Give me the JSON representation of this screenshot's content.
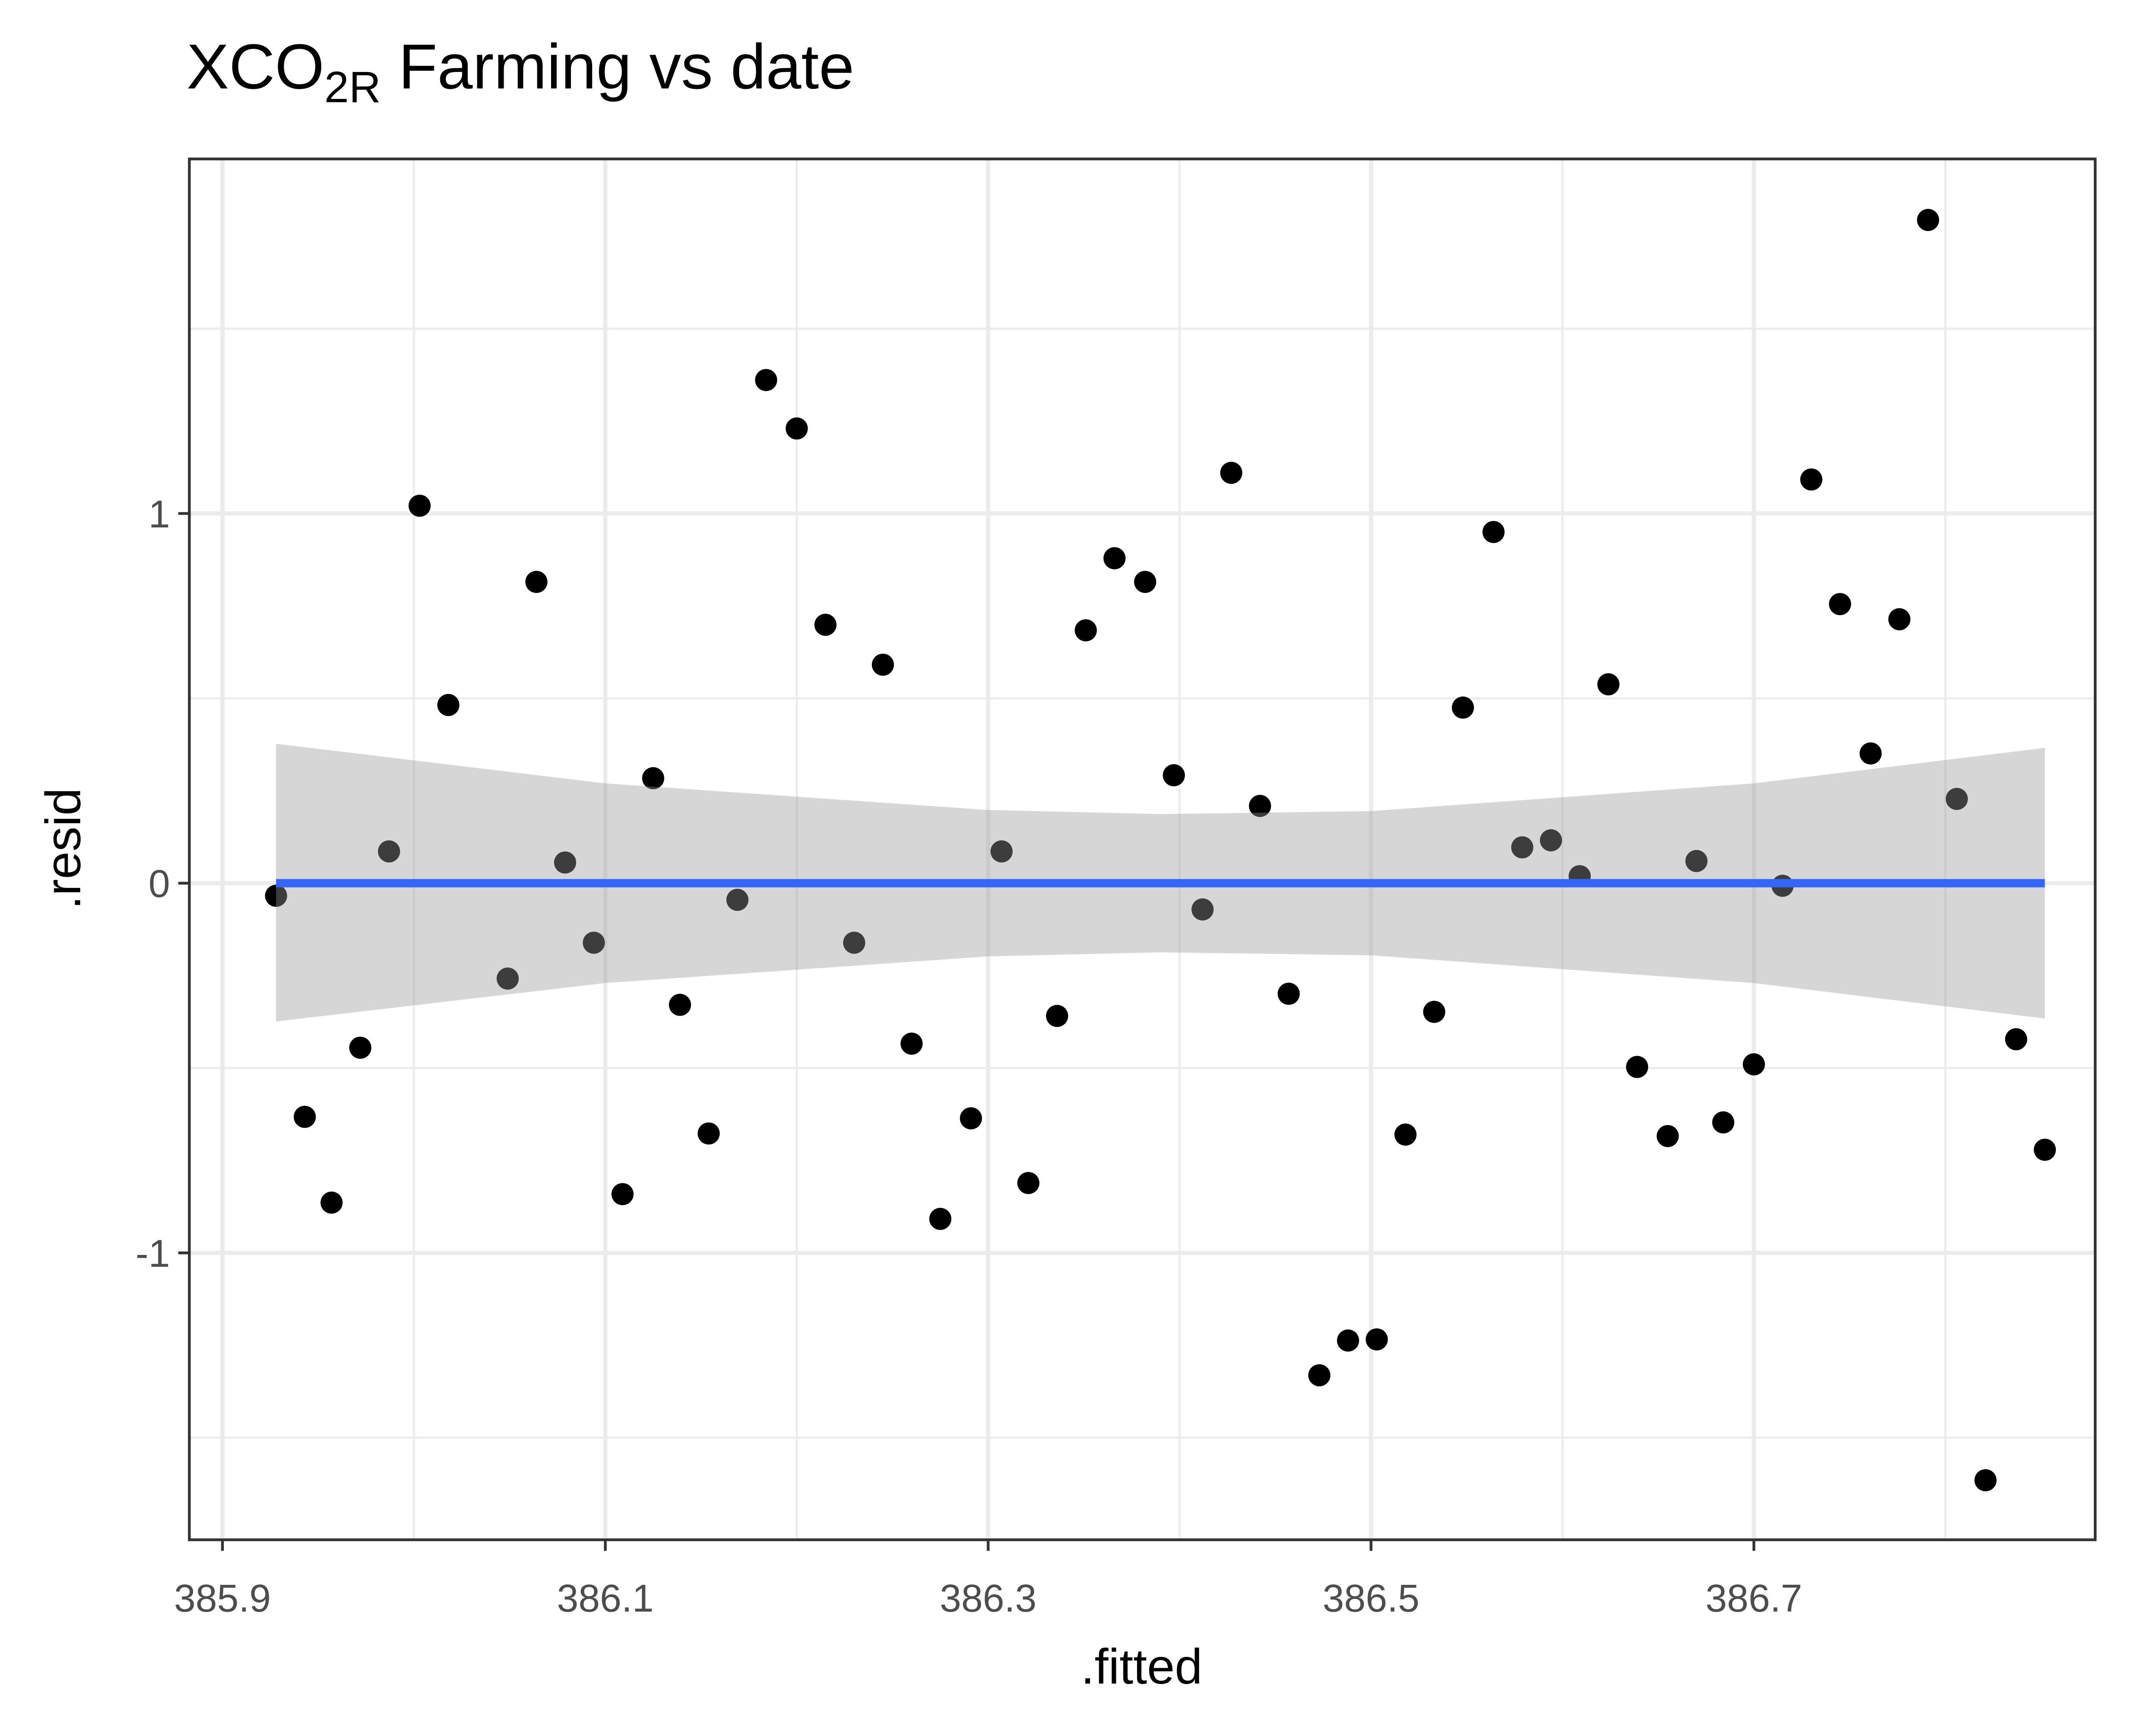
{
  "chart_data": {
    "type": "scatter",
    "title": [
      "XCO",
      "2R",
      " Farming vs date"
    ],
    "x_label": ".fitted",
    "y_label": ".resid",
    "xlim": [
      385.8827,
      386.8783
    ],
    "ylim": [
      -1.776,
      1.959
    ],
    "xticks": [
      385.9,
      386.1,
      386.3,
      386.5,
      386.7
    ],
    "yticks": [
      -1,
      0,
      1
    ],
    "grid": true,
    "points": {
      "color": "#000000",
      "x": [
        385.928,
        385.943,
        385.957,
        385.972,
        385.987,
        386.003,
        386.018,
        386.049,
        386.064,
        386.079,
        386.094,
        386.109,
        386.125,
        386.139,
        386.154,
        386.169,
        386.184,
        386.2,
        386.215,
        386.23,
        386.245,
        386.26,
        386.275,
        386.291,
        386.307,
        386.321,
        386.336,
        386.351,
        386.366,
        386.382,
        386.397,
        386.412,
        386.427,
        386.442,
        386.457,
        386.473,
        386.488,
        386.503,
        386.518,
        386.533,
        386.548,
        386.564,
        386.579,
        386.594,
        386.609,
        386.624,
        386.639,
        386.655,
        386.67,
        386.684,
        386.7,
        386.715,
        386.73,
        386.745,
        386.761,
        386.776,
        386.791,
        386.806,
        386.821,
        386.837,
        386.852
      ],
      "values": [
        -0.034,
        -0.632,
        -0.864,
        -0.445,
        0.086,
        1.021,
        0.482,
        -0.258,
        0.815,
        0.056,
        -0.161,
        -0.841,
        0.284,
        -0.329,
        -0.677,
        -0.045,
        1.361,
        1.23,
        0.699,
        -0.161,
        0.591,
        -0.434,
        -0.908,
        -0.636,
        0.086,
        -0.811,
        -0.359,
        0.684,
        0.879,
        0.815,
        0.292,
        -0.071,
        1.11,
        0.209,
        -0.299,
        -1.331,
        -1.237,
        -1.234,
        -0.68,
        -0.348,
        0.475,
        0.95,
        0.097,
        0.116,
        0.019,
        0.538,
        -0.497,
        -0.684,
        0.06,
        -0.647,
        -0.49,
        -0.007,
        1.092,
        0.755,
        0.351,
        0.714,
        1.794,
        0.228,
        -1.615,
        -0.422,
        -0.721
      ]
    },
    "band": {
      "color": "#999999",
      "x": [
        385.928,
        386.1,
        386.3,
        386.39,
        386.5,
        386.7,
        386.852
      ],
      "upper": [
        0.377,
        0.27,
        0.198,
        0.187,
        0.195,
        0.27,
        0.366
      ],
      "lower": [
        -0.374,
        -0.27,
        -0.198,
        -0.187,
        -0.195,
        -0.27,
        -0.366
      ]
    },
    "fit": {
      "color": "#3366ff",
      "x": [
        385.928,
        386.852
      ],
      "values": [
        0,
        0
      ]
    }
  }
}
